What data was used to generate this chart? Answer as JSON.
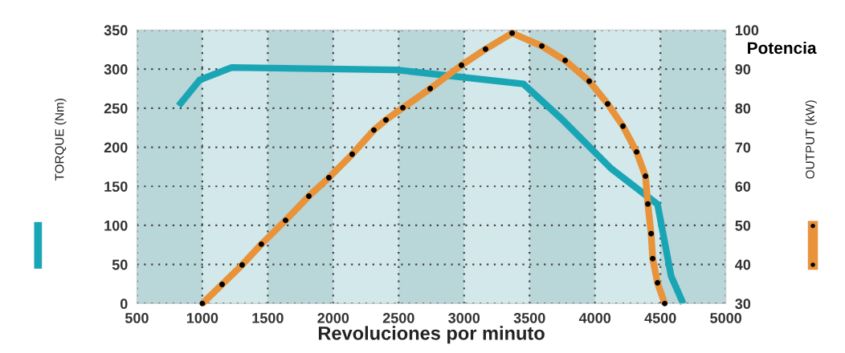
{
  "chart_data": {
    "type": "line",
    "xlabel": "Revoluciones por minuto",
    "ylabel": "TORQUE (Nm)",
    "y2label": "OUTPUT (kW)",
    "annotations": [
      "Potencia"
    ],
    "xlim": [
      500,
      5000
    ],
    "xticks": [
      500,
      1000,
      1500,
      2000,
      2500,
      3000,
      3500,
      4000,
      4500,
      5000
    ],
    "ylim": [
      0,
      350
    ],
    "yticks": [
      0,
      50,
      100,
      150,
      200,
      250,
      300,
      350
    ],
    "y2lim": [
      30,
      100
    ],
    "y2ticks": [
      30,
      40,
      50,
      60,
      70,
      80,
      90,
      100
    ],
    "grid": true,
    "series": [
      {
        "color": "#1aa5b5",
        "x": [
          819,
          979,
          1224,
          2483,
          3453,
          3753,
          4122,
          4478,
          4582,
          4674
        ],
        "values": [
          253,
          286,
          302,
          299,
          281,
          235,
          173,
          127,
          35,
          0
        ]
      },
      {
        "color": "#e8923a",
        "axis": "y2",
        "marker": "circle",
        "x": [
          1000,
          1151,
          1304,
          1451,
          1636,
          1814,
          1967,
          2145,
          2311,
          2403,
          2532,
          2741,
          2980,
          3164,
          3367,
          3594,
          3772,
          3956,
          4097,
          4214,
          4318,
          4386,
          4404,
          4429,
          4441,
          4478,
          4533
        ],
        "values": [
          30,
          34.9,
          39.9,
          45.2,
          51.3,
          57.5,
          62.2,
          68.2,
          74.4,
          77,
          80.1,
          85,
          91,
          95.1,
          99.2,
          95.9,
          92.2,
          86.9,
          81.1,
          75.4,
          68.8,
          62.6,
          55.5,
          47.9,
          41.5,
          35.3,
          30
        ]
      }
    ]
  }
}
